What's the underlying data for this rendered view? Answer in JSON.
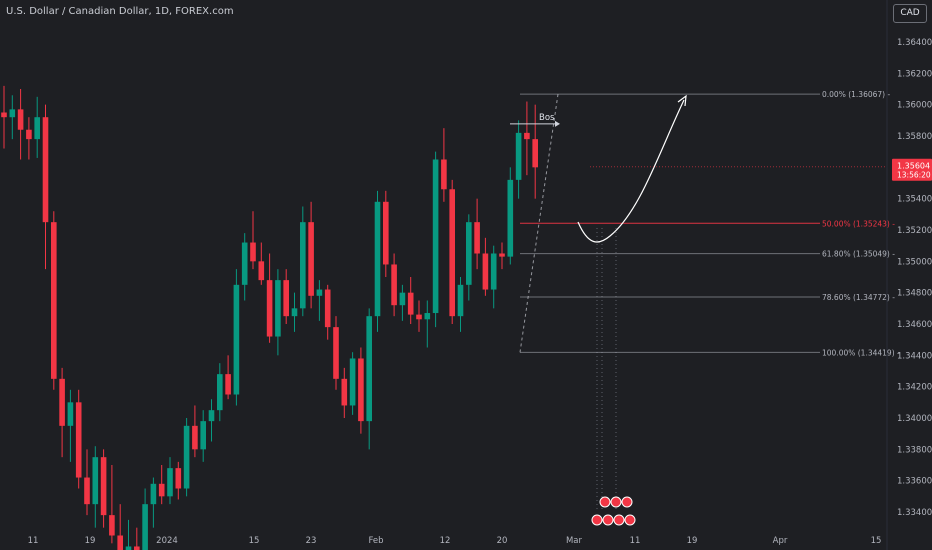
{
  "header": {
    "symbol_title": "U.S. Dollar / Canadian Dollar, 1D, FOREX.com",
    "currency_badge": "CAD"
  },
  "price_label": {
    "price": "1.35604",
    "countdown": "13:56:20",
    "color": "#f23645"
  },
  "colors": {
    "background": "#1e1f23",
    "up": "#089981",
    "down": "#f23645",
    "axis_text": "#b2b5be",
    "fib_line": "#b2b5be"
  },
  "annotations": {
    "bos_label": "Bos",
    "projection_arrow": "curved white arrow pointing up-right toward 1.36067",
    "event_icons": "calendar-event-icons"
  },
  "chart_data": {
    "type": "candlestick",
    "symbol": "USDCAD",
    "timeframe": "1D",
    "ylim": [
      1.333,
      1.3665
    ],
    "yticks": [
      "1.33400",
      "1.33600",
      "1.33800",
      "1.34000",
      "1.34200",
      "1.34400",
      "1.34600",
      "1.34800",
      "1.35000",
      "1.35200",
      "1.35400",
      "1.35600",
      "1.35800",
      "1.36000",
      "1.36200",
      "1.36400"
    ],
    "xticks": [
      "11",
      "19",
      "2024",
      "15",
      "23",
      "Feb",
      "12",
      "20",
      "Mar",
      "11",
      "19",
      "Apr",
      "15"
    ],
    "candles": [
      {
        "o": 1.3595,
        "h": 1.3612,
        "l": 1.3572,
        "c": 1.3592
      },
      {
        "o": 1.3592,
        "h": 1.3606,
        "l": 1.3578,
        "c": 1.3597
      },
      {
        "o": 1.3597,
        "h": 1.361,
        "l": 1.3565,
        "c": 1.3584
      },
      {
        "o": 1.3584,
        "h": 1.3592,
        "l": 1.3565,
        "c": 1.3578
      },
      {
        "o": 1.3578,
        "h": 1.3605,
        "l": 1.3566,
        "c": 1.3592
      },
      {
        "o": 1.3592,
        "h": 1.36,
        "l": 1.3495,
        "c": 1.3525
      },
      {
        "o": 1.3525,
        "h": 1.3532,
        "l": 1.3418,
        "c": 1.3425
      },
      {
        "o": 1.3425,
        "h": 1.3432,
        "l": 1.3375,
        "c": 1.3395
      },
      {
        "o": 1.3395,
        "h": 1.3418,
        "l": 1.3372,
        "c": 1.341
      },
      {
        "o": 1.341,
        "h": 1.3418,
        "l": 1.3355,
        "c": 1.3362
      },
      {
        "o": 1.3362,
        "h": 1.338,
        "l": 1.3338,
        "c": 1.3345
      },
      {
        "o": 1.3345,
        "h": 1.3382,
        "l": 1.333,
        "c": 1.3375
      },
      {
        "o": 1.3375,
        "h": 1.338,
        "l": 1.333,
        "c": 1.3338
      },
      {
        "o": 1.3338,
        "h": 1.337,
        "l": 1.332,
        "c": 1.3325
      },
      {
        "o": 1.3325,
        "h": 1.3345,
        "l": 1.3305,
        "c": 1.3315
      },
      {
        "o": 1.3315,
        "h": 1.3335,
        "l": 1.33,
        "c": 1.3318
      },
      {
        "o": 1.3318,
        "h": 1.333,
        "l": 1.33,
        "c": 1.331
      },
      {
        "o": 1.331,
        "h": 1.3355,
        "l": 1.33,
        "c": 1.3345
      },
      {
        "o": 1.3345,
        "h": 1.3362,
        "l": 1.333,
        "c": 1.3358
      },
      {
        "o": 1.3358,
        "h": 1.337,
        "l": 1.3345,
        "c": 1.335
      },
      {
        "o": 1.335,
        "h": 1.3375,
        "l": 1.3345,
        "c": 1.3368
      },
      {
        "o": 1.3368,
        "h": 1.3372,
        "l": 1.3348,
        "c": 1.3355
      },
      {
        "o": 1.3355,
        "h": 1.34,
        "l": 1.335,
        "c": 1.3395
      },
      {
        "o": 1.3395,
        "h": 1.3408,
        "l": 1.3375,
        "c": 1.338
      },
      {
        "o": 1.338,
        "h": 1.3405,
        "l": 1.3372,
        "c": 1.3398
      },
      {
        "o": 1.3398,
        "h": 1.3412,
        "l": 1.3385,
        "c": 1.3405
      },
      {
        "o": 1.3405,
        "h": 1.3435,
        "l": 1.3398,
        "c": 1.3428
      },
      {
        "o": 1.3428,
        "h": 1.344,
        "l": 1.3412,
        "c": 1.3415
      },
      {
        "o": 1.3415,
        "h": 1.3495,
        "l": 1.3408,
        "c": 1.3485
      },
      {
        "o": 1.3485,
        "h": 1.3518,
        "l": 1.3475,
        "c": 1.3512
      },
      {
        "o": 1.3512,
        "h": 1.3532,
        "l": 1.3495,
        "c": 1.35
      },
      {
        "o": 1.35,
        "h": 1.3512,
        "l": 1.3485,
        "c": 1.3488
      },
      {
        "o": 1.3488,
        "h": 1.3505,
        "l": 1.3448,
        "c": 1.3452
      },
      {
        "o": 1.3452,
        "h": 1.3495,
        "l": 1.344,
        "c": 1.3488
      },
      {
        "o": 1.3488,
        "h": 1.3495,
        "l": 1.346,
        "c": 1.3465
      },
      {
        "o": 1.3465,
        "h": 1.348,
        "l": 1.3455,
        "c": 1.347
      },
      {
        "o": 1.347,
        "h": 1.3535,
        "l": 1.3465,
        "c": 1.3525
      },
      {
        "o": 1.3525,
        "h": 1.3538,
        "l": 1.347,
        "c": 1.3478
      },
      {
        "o": 1.3478,
        "h": 1.3488,
        "l": 1.3462,
        "c": 1.3482
      },
      {
        "o": 1.3482,
        "h": 1.3485,
        "l": 1.345,
        "c": 1.3458
      },
      {
        "o": 1.3458,
        "h": 1.3465,
        "l": 1.3418,
        "c": 1.3425
      },
      {
        "o": 1.3425,
        "h": 1.3432,
        "l": 1.34,
        "c": 1.3408
      },
      {
        "o": 1.3408,
        "h": 1.3442,
        "l": 1.3402,
        "c": 1.3438
      },
      {
        "o": 1.3438,
        "h": 1.3445,
        "l": 1.339,
        "c": 1.3398
      },
      {
        "o": 1.3398,
        "h": 1.347,
        "l": 1.338,
        "c": 1.3465
      },
      {
        "o": 1.3465,
        "h": 1.3545,
        "l": 1.3455,
        "c": 1.3538
      },
      {
        "o": 1.3538,
        "h": 1.3545,
        "l": 1.349,
        "c": 1.3498
      },
      {
        "o": 1.3498,
        "h": 1.3505,
        "l": 1.3465,
        "c": 1.3472
      },
      {
        "o": 1.3472,
        "h": 1.3485,
        "l": 1.3462,
        "c": 1.348
      },
      {
        "o": 1.348,
        "h": 1.349,
        "l": 1.346,
        "c": 1.3466
      },
      {
        "o": 1.3466,
        "h": 1.3475,
        "l": 1.3455,
        "c": 1.3463
      },
      {
        "o": 1.3463,
        "h": 1.3475,
        "l": 1.3445,
        "c": 1.3467
      },
      {
        "o": 1.3467,
        "h": 1.357,
        "l": 1.3458,
        "c": 1.3565
      },
      {
        "o": 1.3565,
        "h": 1.3585,
        "l": 1.3538,
        "c": 1.3546
      },
      {
        "o": 1.3546,
        "h": 1.3552,
        "l": 1.346,
        "c": 1.3465
      },
      {
        "o": 1.3465,
        "h": 1.349,
        "l": 1.3455,
        "c": 1.3485
      },
      {
        "o": 1.3485,
        "h": 1.353,
        "l": 1.3475,
        "c": 1.3525
      },
      {
        "o": 1.3525,
        "h": 1.354,
        "l": 1.3495,
        "c": 1.3505
      },
      {
        "o": 1.3505,
        "h": 1.3515,
        "l": 1.3478,
        "c": 1.3482
      },
      {
        "o": 1.3482,
        "h": 1.351,
        "l": 1.347,
        "c": 1.3505
      },
      {
        "o": 1.3505,
        "h": 1.3512,
        "l": 1.3495,
        "c": 1.3503
      },
      {
        "o": 1.3503,
        "h": 1.356,
        "l": 1.3498,
        "c": 1.3552
      },
      {
        "o": 1.3552,
        "h": 1.359,
        "l": 1.354,
        "c": 1.3582
      },
      {
        "o": 1.3582,
        "h": 1.3602,
        "l": 1.3555,
        "c": 1.3578
      },
      {
        "o": 1.3578,
        "h": 1.36,
        "l": 1.354,
        "c": 1.356
      }
    ],
    "fib_levels": [
      {
        "label": "0.00% (1.36067)",
        "value": 1.36067
      },
      {
        "label": "50.00% (1.35243)",
        "value": 1.35243
      },
      {
        "label": "61.80% (1.35049)",
        "value": 1.35049
      },
      {
        "label": "78.60% (1.34772)",
        "value": 1.34772
      },
      {
        "label": "100.00% (1.34419)",
        "value": 1.34419
      }
    ]
  }
}
